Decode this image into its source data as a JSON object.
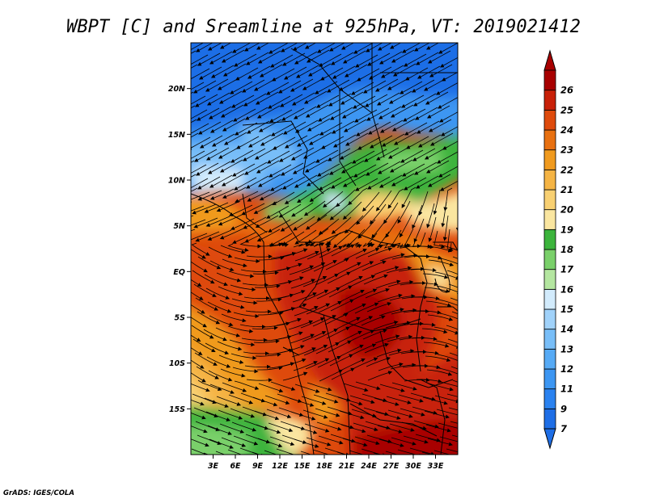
{
  "title": "WBPT [C] and Sreamline at 925hPa, VT: 2019021412",
  "credit": "GrADS: IGES/COLA",
  "map": {
    "lon_range": [
      0,
      36
    ],
    "lat_range": [
      -20,
      25
    ],
    "lat_ticks": [
      {
        "value": 20,
        "label": "20N"
      },
      {
        "value": 15,
        "label": "15N"
      },
      {
        "value": 10,
        "label": "10N"
      },
      {
        "value": 5,
        "label": "5N"
      },
      {
        "value": 0,
        "label": "EQ"
      },
      {
        "value": -5,
        "label": "5S"
      },
      {
        "value": -10,
        "label": "10S"
      },
      {
        "value": -15,
        "label": "15S"
      }
    ],
    "lon_ticks": [
      {
        "value": 3,
        "label": "3E"
      },
      {
        "value": 6,
        "label": "6E"
      },
      {
        "value": 9,
        "label": "9E"
      },
      {
        "value": 12,
        "label": "12E"
      },
      {
        "value": 15,
        "label": "15E"
      },
      {
        "value": 18,
        "label": "18E"
      },
      {
        "value": 21,
        "label": "21E"
      },
      {
        "value": 24,
        "label": "24E"
      },
      {
        "value": 27,
        "label": "27E"
      },
      {
        "value": 30,
        "label": "30E"
      },
      {
        "value": 33,
        "label": "33E"
      }
    ]
  },
  "colorbar": {
    "labels": [
      "7",
      "9",
      "11",
      "12",
      "13",
      "14",
      "15",
      "16",
      "17",
      "18",
      "19",
      "20",
      "21",
      "22",
      "23",
      "24",
      "25",
      "26"
    ],
    "colors": [
      "#1e6ee6",
      "#2a82f0",
      "#3c96f2",
      "#56aaf5",
      "#78bef8",
      "#a0d2fa",
      "#d2ebfc",
      "#b4e6a0",
      "#7ad06a",
      "#3cb43c",
      "#fae6a0",
      "#f8d072",
      "#f5b444",
      "#f09a1e",
      "#e87010",
      "#de4a0c",
      "#c82008",
      "#a80000"
    ],
    "low_color": "#1e6ee6",
    "high_color": "#a80000"
  }
}
